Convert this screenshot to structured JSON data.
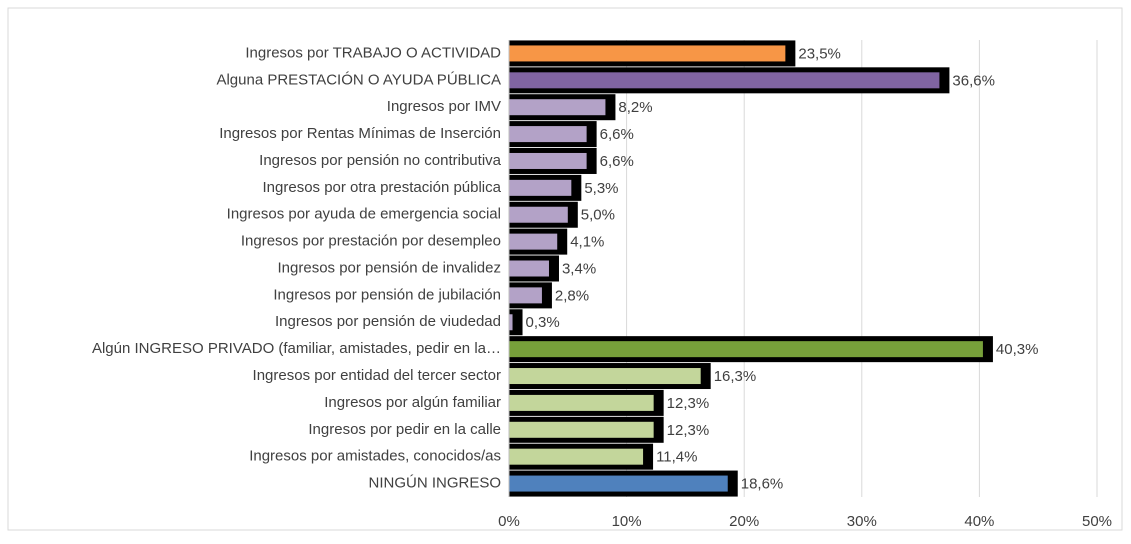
{
  "chart_data": {
    "type": "bar",
    "orientation": "horizontal",
    "categories": [
      "Ingresos por TRABAJO O ACTIVIDAD",
      "Alguna PRESTACIÓN O AYUDA PÚBLICA",
      "Ingresos por IMV",
      "Ingresos por Rentas Mínimas de Inserción",
      "Ingresos por pensión no contributiva",
      "Ingresos por otra prestación pública",
      "Ingresos por ayuda de emergencia social",
      "Ingresos por prestación por desempleo",
      "Ingresos por pensión de invalidez",
      "Ingresos por pensión de jubilación",
      "Ingresos por pensión de viudedad",
      "Algún INGRESO PRIVADO (familiar, amistades, pedir en la…",
      "Ingresos por entidad del tercer sector",
      "Ingresos por algún familiar",
      "Ingresos por pedir en la calle",
      "Ingresos por amistades, conocidos/as",
      "NINGÚN INGRESO"
    ],
    "values": [
      23.5,
      36.6,
      8.2,
      6.6,
      6.6,
      5.3,
      5.0,
      4.1,
      3.4,
      2.8,
      0.3,
      40.3,
      16.3,
      12.3,
      12.3,
      11.4,
      18.6
    ],
    "value_labels": [
      "23,5%",
      "36,6%",
      "8,2%",
      "6,6%",
      "6,6%",
      "5,3%",
      "5,0%",
      "4,1%",
      "3,4%",
      "2,8%",
      "0,3%",
      "40,3%",
      "16,3%",
      "12,3%",
      "12,3%",
      "11,4%",
      "18,6%"
    ],
    "colors": [
      "#f79646",
      "#8064a2",
      "#b3a2c7",
      "#b3a2c7",
      "#b3a2c7",
      "#b3a2c7",
      "#b3a2c7",
      "#b3a2c7",
      "#b3a2c7",
      "#b3a2c7",
      "#b3a2c7",
      "#77a03a",
      "#c3d69b",
      "#c3d69b",
      "#c3d69b",
      "#c3d69b",
      "#4f81bd"
    ],
    "xlim": [
      0,
      50
    ],
    "xticks": [
      {
        "value": 0,
        "label": "0%"
      },
      {
        "value": 10,
        "label": "10%"
      },
      {
        "value": 20,
        "label": "20%"
      },
      {
        "value": 30,
        "label": "30%"
      },
      {
        "value": 40,
        "label": "40%"
      },
      {
        "value": 50,
        "label": "50%"
      }
    ],
    "grid": true
  }
}
